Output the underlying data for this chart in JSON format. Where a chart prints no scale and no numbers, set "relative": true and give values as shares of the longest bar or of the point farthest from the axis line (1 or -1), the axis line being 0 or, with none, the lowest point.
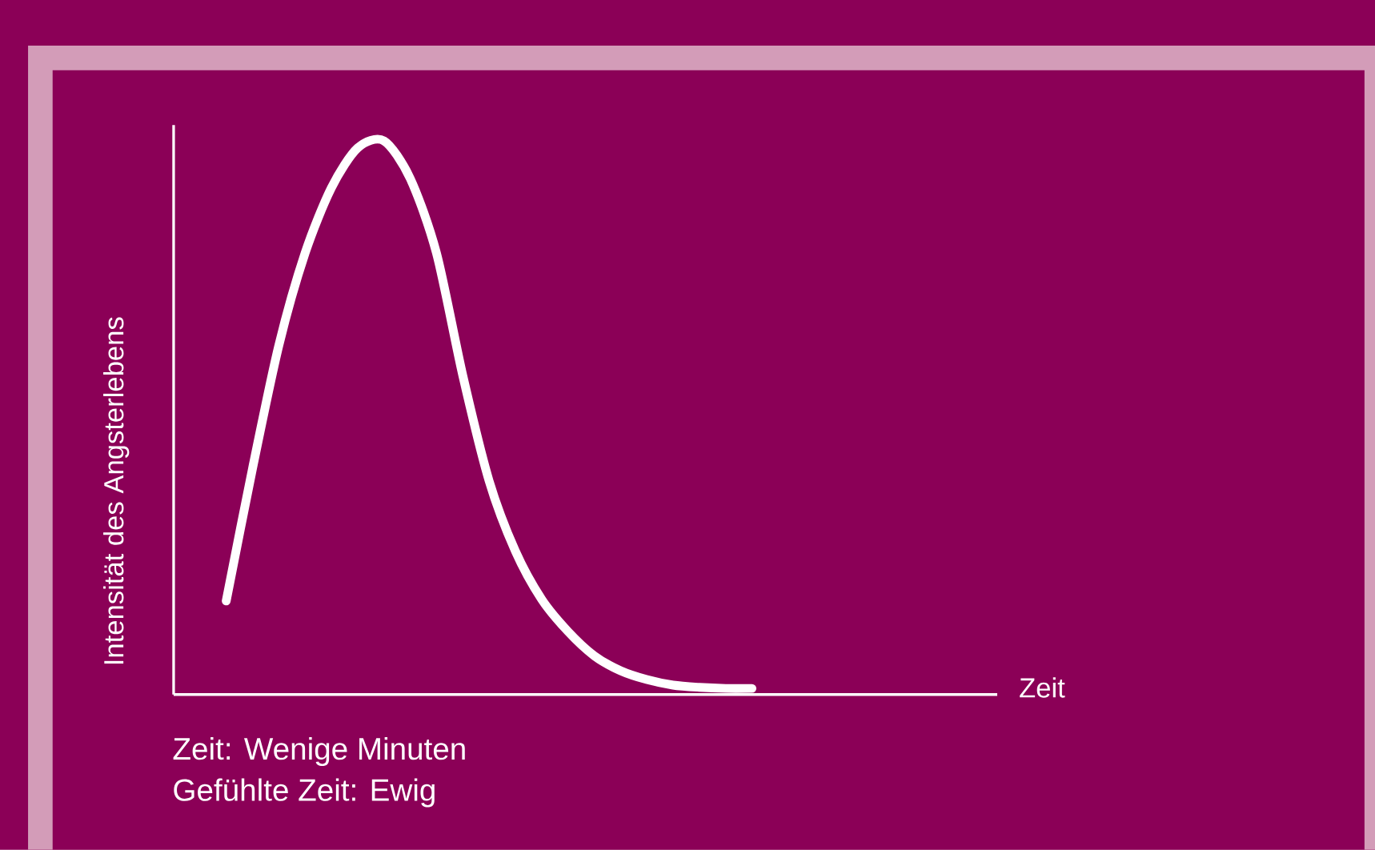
{
  "chart_data": {
    "type": "line",
    "relative": true,
    "color": "#ffffff",
    "line_style": "solid",
    "marker": "none",
    "ylabel": "Intensität des Angsterlebens",
    "xlabel": "Zeit",
    "annotations": [
      "Zeit: Wenige Minuten",
      "Gefühlte Zeit: Ewig"
    ],
    "categories": [
      null,
      null,
      null,
      null,
      null,
      null,
      null,
      null,
      null,
      null,
      null,
      null,
      null,
      null,
      null,
      null,
      null,
      null,
      null,
      null,
      null,
      null,
      null,
      null,
      null,
      null,
      null,
      null,
      null,
      null,
      null,
      null
    ],
    "values": [
      null,
      null,
      0.169,
      0.408,
      0.63,
      0.797,
      0.915,
      0.987,
      1.0,
      0.932,
      0.797,
      0.576,
      0.386,
      0.259,
      0.172,
      0.114,
      0.07,
      0.043,
      0.027,
      0.017,
      0.013,
      0.011,
      0.011,
      null,
      null,
      null,
      null,
      null,
      null,
      null,
      null,
      null
    ]
  }
}
